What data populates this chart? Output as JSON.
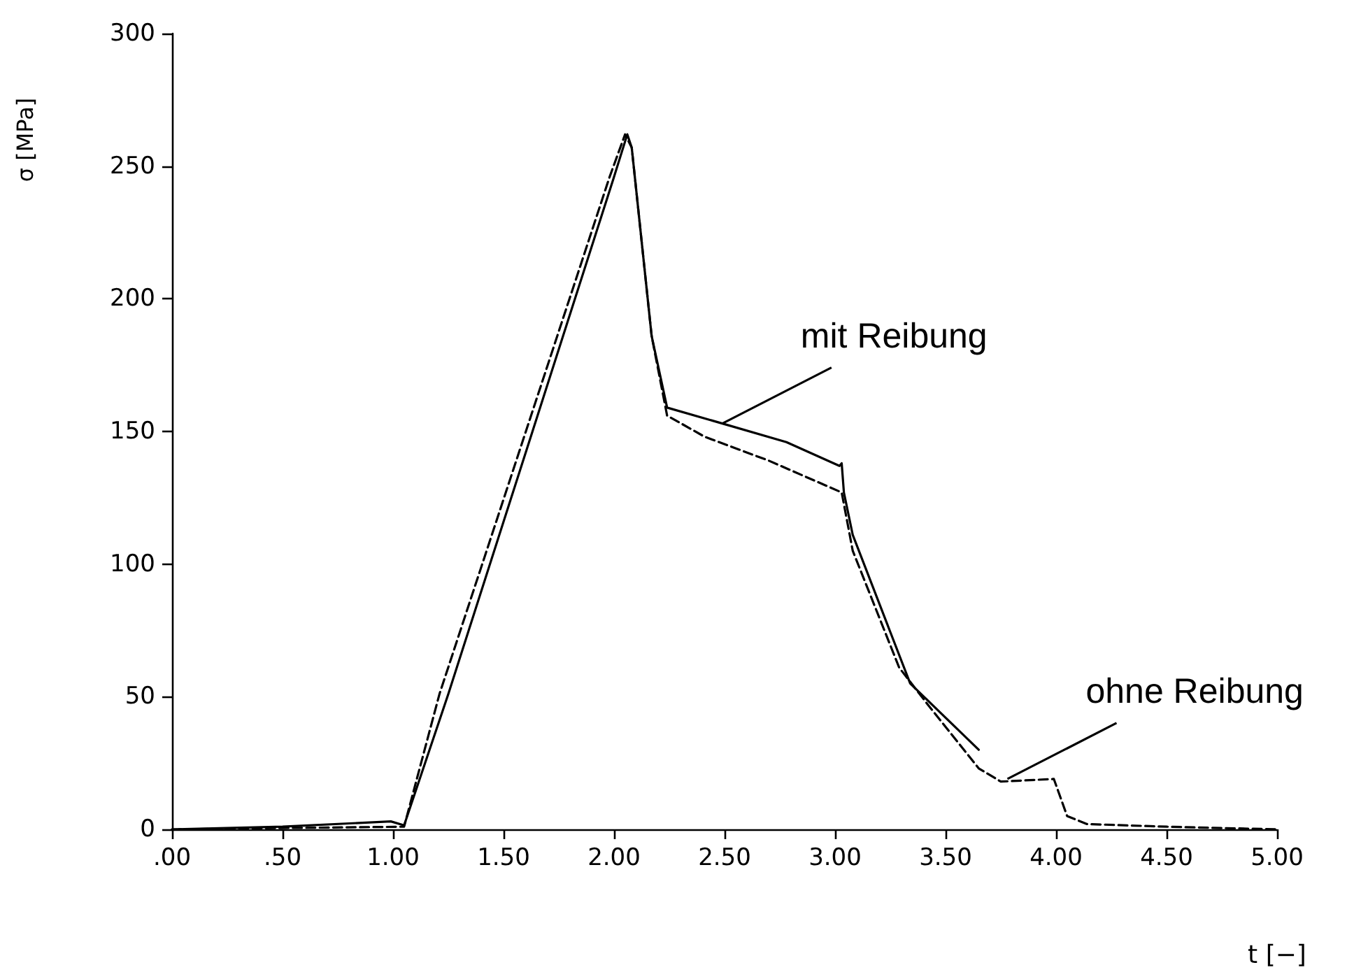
{
  "chart_data": {
    "type": "line",
    "xlabel": "t [−]",
    "ylabel": "σ [MPa]",
    "xlim": [
      0,
      5
    ],
    "ylim": [
      0,
      300
    ],
    "xticks": [
      {
        "value": 0,
        "label": ".00"
      },
      {
        "value": 0.5,
        "label": ".50"
      },
      {
        "value": 1,
        "label": "1.00"
      },
      {
        "value": 1.5,
        "label": "1.50"
      },
      {
        "value": 2,
        "label": "2.00"
      },
      {
        "value": 2.5,
        "label": "2.50"
      },
      {
        "value": 3,
        "label": "3.00"
      },
      {
        "value": 3.5,
        "label": "3.50"
      },
      {
        "value": 4,
        "label": "4.00"
      },
      {
        "value": 4.5,
        "label": "4.50"
      },
      {
        "value": 5,
        "label": "5.00"
      }
    ],
    "yticks": [
      0,
      50,
      100,
      150,
      200,
      250,
      300
    ],
    "grid": false,
    "marker": "none",
    "series": [
      {
        "color": "#000000",
        "line_style": "solid",
        "x": [
          0,
          0.5,
          0.99,
          1.05,
          1.25,
          2.0,
          2.06,
          2.08,
          2.17,
          2.24,
          2.49,
          2.78,
          3.02,
          3.03,
          3.04,
          3.08,
          3.34,
          3.65
        ],
        "values": [
          0,
          1,
          3,
          1.5,
          51,
          246,
          262,
          257,
          186,
          159,
          153,
          146,
          137,
          138,
          127,
          111,
          55,
          30
        ]
      },
      {
        "color": "#000000",
        "line_style": "dashed",
        "x": [
          0,
          0.5,
          1.05,
          1.21,
          1.98,
          2.05,
          2.08,
          2.17,
          2.24,
          2.41,
          2.7,
          3.03,
          3.08,
          3.29,
          3.42,
          3.65,
          3.75,
          3.99,
          4.05,
          4.14,
          4.5,
          5.0
        ],
        "values": [
          0,
          0.5,
          1,
          51,
          246,
          262,
          257,
          186,
          156,
          148,
          139,
          127,
          105,
          61,
          47,
          23,
          18,
          19,
          5,
          2,
          1,
          0
        ]
      }
    ],
    "annotations": [
      {
        "text": "mit Reibung",
        "x": 2.49,
        "y": 153
      },
      {
        "text": "ohne Reibung",
        "x": 3.78,
        "y": 19
      }
    ]
  }
}
